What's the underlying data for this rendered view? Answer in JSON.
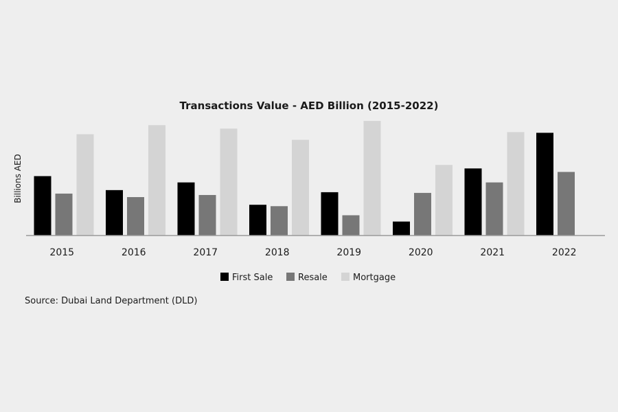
{
  "page": {
    "background": "#eeeeee"
  },
  "chart_data": {
    "type": "bar",
    "title": "Transactions Value - AED Billion (2015-2022)",
    "xlabel": "",
    "ylabel": "Billions AED",
    "categories": [
      "2015",
      "2016",
      "2017",
      "2018",
      "2019",
      "2020",
      "2021",
      "2022"
    ],
    "series": [
      {
        "name": "First Sale",
        "color": "#000000",
        "values": [
          85,
          65,
          76,
          44,
          62,
          20,
          96,
          147
        ]
      },
      {
        "name": "Resale",
        "color": "#777777",
        "values": [
          60,
          55,
          58,
          42,
          29,
          61,
          76,
          91
        ]
      },
      {
        "name": "Mortgage",
        "color": "#d4d4d4",
        "values": [
          145,
          158,
          153,
          137,
          164,
          101,
          148,
          null
        ]
      }
    ],
    "ylim": [
      0,
      170
    ],
    "grid": false,
    "yaxis_visible": false,
    "legend_position": "bottom",
    "source": "Source: Dubai Land Department (DLD)"
  }
}
